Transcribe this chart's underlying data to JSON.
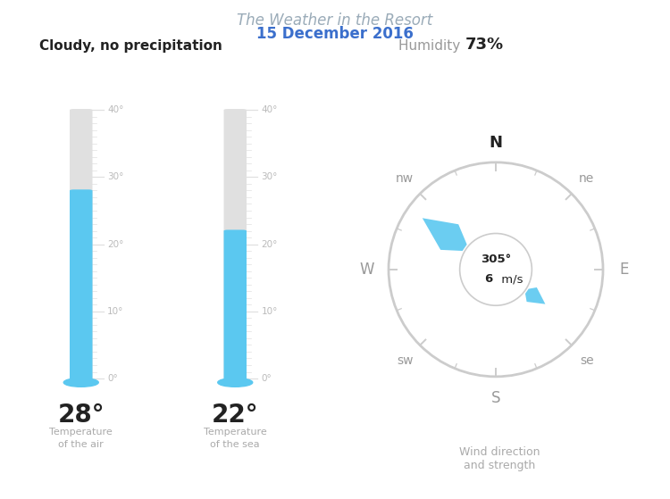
{
  "title": "The Weather in the Resort",
  "subtitle": "15 December 2016",
  "title_color": "#9aabb8",
  "subtitle_color": "#3b6fcc",
  "weather_label": "Cloudy, no precipitation",
  "humidity_label": "Humidity",
  "humidity_value": "73%",
  "temp_air": 28,
  "temp_sea": 22,
  "temp_min": 0,
  "temp_max": 40,
  "wind_direction": 305,
  "wind_speed": 6,
  "gauge_color": "#5bc8f0",
  "gauge_bg_color": "#e0e0e0",
  "compass_color": "#cccccc",
  "compass_text_color": "#999999",
  "tick_label_color": "#bbbbbb",
  "value_label_color": "#222222",
  "sub_label_color": "#aaaaaa",
  "bg_color": "#ffffff"
}
